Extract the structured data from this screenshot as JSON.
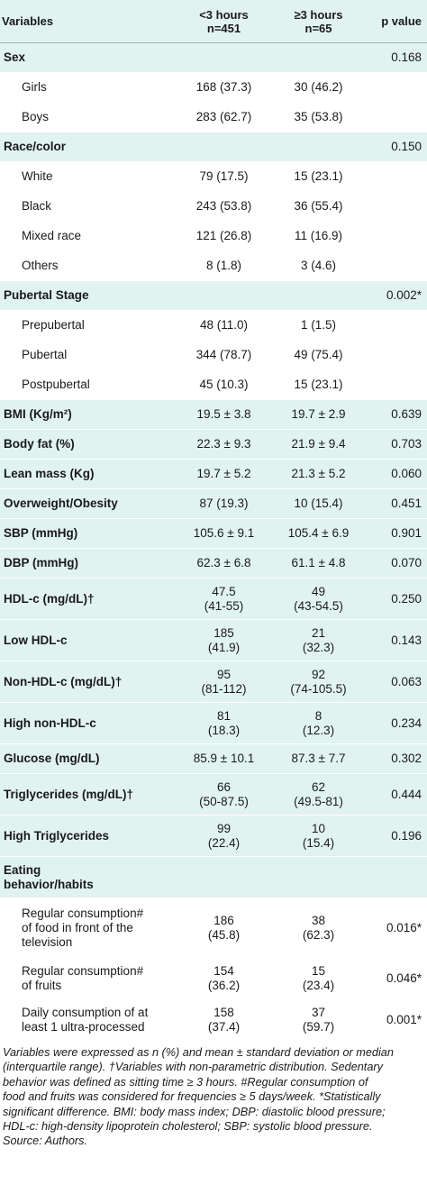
{
  "header": {
    "variables": "Variables",
    "g1_line1": "<3 hours",
    "g1_line2": "n=451",
    "g2_line1": "≥3 hours",
    "g2_line2": "n=65",
    "pvalue": "p value"
  },
  "rows": {
    "sex": {
      "label": "Sex",
      "p": "0.168"
    },
    "girls": {
      "label": "Girls",
      "g1": "168 (37.3)",
      "g2": "30 (46.2)"
    },
    "boys": {
      "label": "Boys",
      "g1": "283 (62.7)",
      "g2": "35 (53.8)"
    },
    "race": {
      "label": "Race/color",
      "p": "0.150"
    },
    "white": {
      "label": "White",
      "g1": "79 (17.5)",
      "g2": "15 (23.1)"
    },
    "black": {
      "label": "Black",
      "g1": "243 (53.8)",
      "g2": "36 (55.4)"
    },
    "mixed": {
      "label": "Mixed race",
      "g1": "121 (26.8)",
      "g2": "11 (16.9)"
    },
    "others": {
      "label": "Others",
      "g1": "8 (1.8)",
      "g2": "3 (4.6)"
    },
    "pubertal": {
      "label": "Pubertal Stage",
      "p": "0.002*"
    },
    "prepubertal": {
      "label": "Prepubertal",
      "g1": "48 (11.0)",
      "g2": "1 (1.5)"
    },
    "pubertal_sub": {
      "label": "Pubertal",
      "g1": "344 (78.7)",
      "g2": "49 (75.4)"
    },
    "postpubertal": {
      "label": "Postpubertal",
      "g1": "45 (10.3)",
      "g2": "15 (23.1)"
    },
    "bmi": {
      "label": "BMI (Kg/m²)",
      "g1": "19.5 ± 3.8",
      "g2": "19.7 ± 2.9",
      "p": "0.639"
    },
    "bodyfat": {
      "label": "Body fat (%)",
      "g1": "22.3 ± 9.3",
      "g2": "21.9 ± 9.4",
      "p": "0.703"
    },
    "leanmass": {
      "label": "Lean mass (Kg)",
      "g1": "19.7 ± 5.2",
      "g2": "21.3 ± 5.2",
      "p": "0.060"
    },
    "overweight": {
      "label": "Overweight/Obesity",
      "g1": "87 (19.3)",
      "g2": "10 (15.4)",
      "p": "0.451"
    },
    "sbp": {
      "label": "SBP (mmHg)",
      "g1": "105.6 ± 9.1",
      "g2": "105.4 ± 6.9",
      "p": "0.901"
    },
    "dbp": {
      "label": "DBP (mmHg)",
      "g1": "62.3 ± 6.8",
      "g2": "61.1 ± 4.8",
      "p": "0.070"
    },
    "hdlc": {
      "label": "HDL-c (mg/dL)†",
      "g1a": "47.5",
      "g1b": "(41-55)",
      "g2a": "49",
      "g2b": "(43-54.5)",
      "p": "0.250"
    },
    "lowhdl": {
      "label": "Low HDL-c",
      "g1a": "185",
      "g1b": "(41.9)",
      "g2a": "21",
      "g2b": "(32.3)",
      "p": "0.143"
    },
    "nonhdl": {
      "label": "Non-HDL-c (mg/dL)†",
      "g1a": "95",
      "g1b": "(81-112)",
      "g2a": "92",
      "g2b": "(74-105.5)",
      "p": "0.063"
    },
    "highnonhdl": {
      "label": "High non-HDL-c",
      "g1a": "81",
      "g1b": "(18.3)",
      "g2a": "8",
      "g2b": "(12.3)",
      "p": "0.234"
    },
    "glucose": {
      "label": "Glucose (mg/dL)",
      "g1": "85.9 ± 10.1",
      "g2": "87.3 ± 7.7",
      "p": "0.302"
    },
    "trig": {
      "label": "Triglycerides (mg/dL)†",
      "g1a": "66",
      "g1b": "(50-87.5)",
      "g2a": "62",
      "g2b": "(49.5-81)",
      "p": "0.444"
    },
    "hightrig": {
      "label": "High Triglycerides",
      "g1a": "99",
      "g1b": "(22.4)",
      "g2a": "10",
      "g2b": "(15.4)",
      "p": "0.196"
    },
    "eating": {
      "label_line1": "Eating",
      "label_line2": "behavior/habits"
    },
    "tv": {
      "label_line1": "Regular consumption#",
      "label_line2": "of food in front of the",
      "label_line3": "television",
      "g1a": "186",
      "g1b": "(45.8)",
      "g2a": "38",
      "g2b": "(62.3)",
      "p": "0.016*"
    },
    "fruits": {
      "label_line1": "Regular consumption#",
      "label_line2": "of fruits",
      "g1a": "154",
      "g1b": "(36.2)",
      "g2a": "15",
      "g2b": "(23.4)",
      "p": "0.046*"
    },
    "ultra": {
      "label_line1": "Daily consumption of at",
      "label_line2": "least 1 ultra-processed",
      "g1a": "158",
      "g1b": "(37.4)",
      "g2a": "37",
      "g2b": "(59.7)",
      "p": "0.001*"
    }
  },
  "footnote": {
    "line1": "Variables were expressed as n (%) and mean ± standard deviation or median",
    "line2": "(interquartile range). †Variables with non-parametric distribution. Sedentary",
    "line3": "behavior was defined as sitting time ≥ 3 hours. #Regular consumption of",
    "line4": "food and fruits was considered for frequencies ≥ 5 days/week. *Statistically",
    "line5": "significant difference. BMI: body mass index; DBP: diastolic blood pressure;",
    "line6": "HDL-c: high-density lipoprotein cholesterol; SBP: systolic blood pressure.",
    "line7": "Source: Authors."
  }
}
